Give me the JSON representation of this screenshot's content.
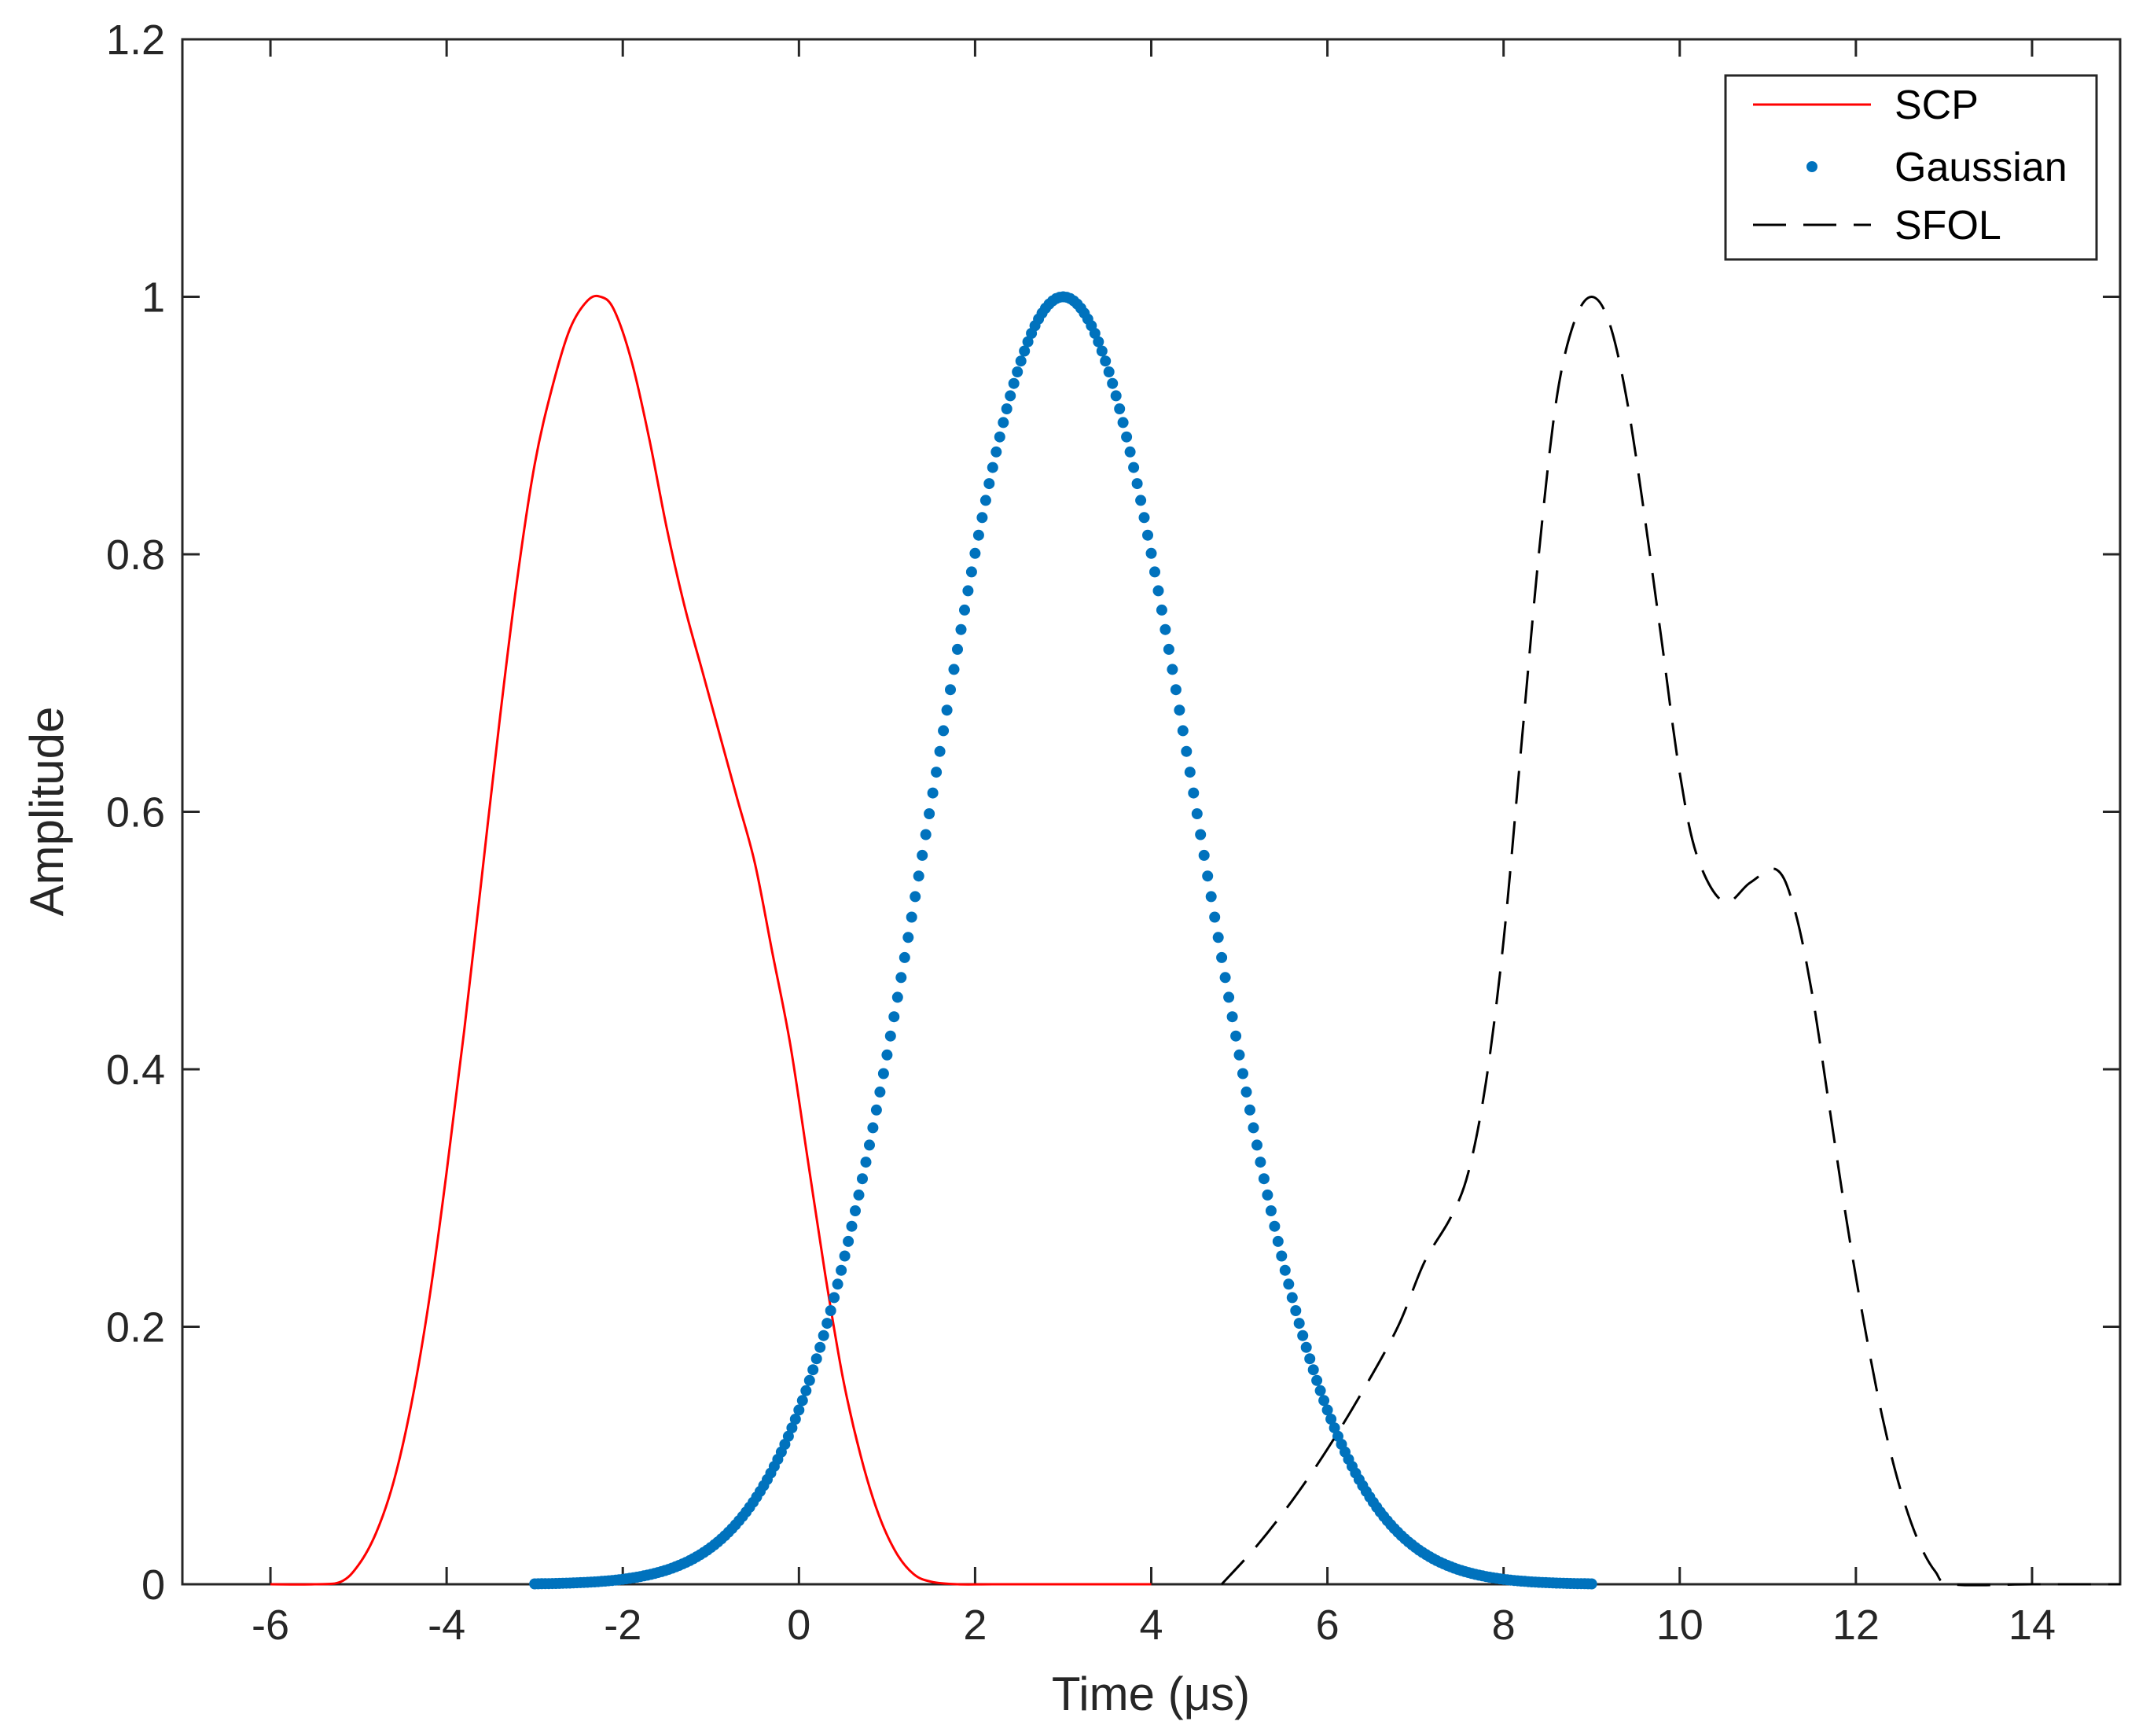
{
  "chart_data": {
    "type": "line",
    "xlabel": "Time (μs)",
    "ylabel": "Amplitude",
    "xlim": [
      -7,
      15
    ],
    "ylim": [
      0,
      1.2
    ],
    "xticks": [
      -6,
      -4,
      -2,
      0,
      2,
      4,
      6,
      8,
      10,
      12,
      14
    ],
    "yticks": [
      0,
      0.2,
      0.4,
      0.6,
      0.8,
      1,
      1.2
    ],
    "xtick_labels": [
      "-6",
      "-4",
      "-2",
      "0",
      "2",
      "4",
      "6",
      "8",
      "10",
      "12",
      "14"
    ],
    "ytick_labels": [
      "0",
      "0.2",
      "0.4",
      "0.6",
      "0.8",
      "1",
      "1.2"
    ],
    "grid": false,
    "legend_position": "top-right",
    "series": [
      {
        "name": "SCP",
        "style": "solid",
        "color": "#ff0000",
        "x": [
          -6,
          -5.5,
          -5.2,
          -5,
          -4.8,
          -4.6,
          -4.4,
          -4.2,
          -4,
          -3.8,
          -3.6,
          -3.4,
          -3.2,
          -3,
          -2.8,
          -2.6,
          -2.4,
          -2.25,
          -2.1,
          -1.9,
          -1.7,
          -1.5,
          -1.3,
          -1.1,
          -0.9,
          -0.7,
          -0.5,
          -0.3,
          -0.1,
          0.1,
          0.3,
          0.5,
          0.7,
          0.9,
          1.1,
          1.3,
          1.5,
          1.8,
          2.2,
          3,
          4
        ],
        "y": [
          0,
          0,
          0.002,
          0.015,
          0.04,
          0.08,
          0.14,
          0.22,
          0.32,
          0.43,
          0.55,
          0.67,
          0.78,
          0.87,
          0.93,
          0.975,
          0.997,
          1.0,
          0.99,
          0.95,
          0.89,
          0.82,
          0.76,
          0.71,
          0.66,
          0.61,
          0.56,
          0.49,
          0.42,
          0.33,
          0.24,
          0.16,
          0.1,
          0.055,
          0.025,
          0.008,
          0.002,
          0,
          0,
          0,
          0
        ]
      },
      {
        "name": "Gaussian",
        "style": "dots",
        "color": "#0072bd",
        "mean": 3,
        "sigma": 1.5,
        "x_start": -3,
        "x_end": 9,
        "x_step": 0.04
      },
      {
        "name": "SFOL",
        "style": "dashed",
        "color": "#000000",
        "x": [
          4.8,
          5.2,
          5.6,
          6,
          6.4,
          6.8,
          7.1,
          7.4,
          7.6,
          7.8,
          8,
          8.2,
          8.4,
          8.6,
          8.8,
          9,
          9.2,
          9.4,
          9.6,
          9.8,
          10,
          10.2,
          10.5,
          10.8,
          11.1,
          11.3,
          11.5,
          11.7,
          11.9,
          12.1,
          12.3,
          12.5,
          12.7,
          12.9,
          13.1,
          14,
          15
        ],
        "y": [
          0,
          0.03,
          0.065,
          0.105,
          0.15,
          0.2,
          0.25,
          0.285,
          0.32,
          0.39,
          0.5,
          0.65,
          0.8,
          0.92,
          0.98,
          1.0,
          0.98,
          0.92,
          0.83,
          0.73,
          0.63,
          0.565,
          0.53,
          0.545,
          0.555,
          0.525,
          0.46,
          0.37,
          0.28,
          0.2,
          0.13,
          0.075,
          0.035,
          0.01,
          0,
          0,
          0
        ]
      }
    ]
  }
}
